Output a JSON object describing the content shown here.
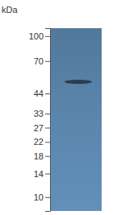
{
  "chart_data": {
    "type": "blot",
    "ylabel": "kDa",
    "log": "y",
    "ylim": [
      8.2,
      112
    ],
    "yticks": [
      100,
      70,
      44,
      33,
      27,
      22,
      18,
      14,
      10
    ],
    "values": [
      52
    ],
    "color": "#5b86ad"
  }
}
